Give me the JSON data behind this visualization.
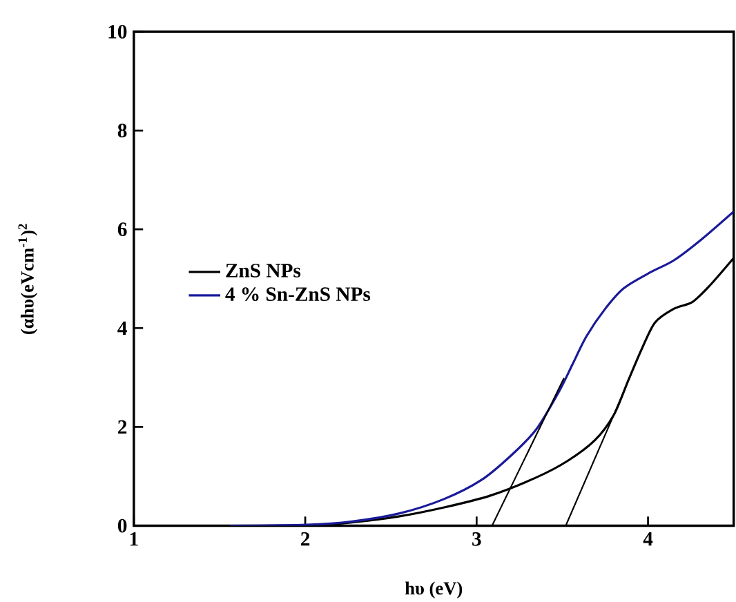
{
  "chart_data": {
    "type": "line",
    "xlabel": "hυ (eV)",
    "ylabel": "(αhυ(eVcm$^{-1}$)$^{2}$",
    "xlim": [
      1,
      4.5
    ],
    "ylim": [
      0,
      10
    ],
    "xticks": [
      1,
      2,
      3,
      4
    ],
    "yticks": [
      0,
      2,
      4,
      6,
      8,
      10
    ],
    "legend": "left",
    "grid": false,
    "marker": "none",
    "line_style": "solid",
    "series": [
      {
        "name": "ZnS NPs",
        "color": "#000000",
        "x": [
          1.56,
          2.01,
          2.28,
          2.55,
          2.81,
          3.08,
          3.35,
          3.53,
          3.69,
          3.8,
          3.88,
          3.96,
          4.04,
          4.15,
          4.26,
          4.36,
          4.5
        ],
        "values": [
          0,
          0,
          0.07,
          0.19,
          0.37,
          0.61,
          0.98,
          1.31,
          1.73,
          2.24,
          2.9,
          3.55,
          4.11,
          4.39,
          4.53,
          4.86,
          5.42
        ]
      },
      {
        "name": "4 % Sn-ZnS NPs",
        "color": "#1a1a9a",
        "x": [
          1.56,
          2.01,
          2.28,
          2.55,
          2.81,
          3.03,
          3.21,
          3.35,
          3.48,
          3.56,
          3.64,
          3.75,
          3.86,
          4.02,
          4.15,
          4.31,
          4.5
        ],
        "values": [
          0,
          0.02,
          0.09,
          0.25,
          0.54,
          0.93,
          1.45,
          1.96,
          2.71,
          3.27,
          3.83,
          4.39,
          4.81,
          5.14,
          5.37,
          5.79,
          6.36
        ]
      },
      {
        "type": "line",
        "color": "#000000",
        "x": [
          3.51,
          3.09
        ],
        "values": [
          2.99,
          0
        ]
      },
      {
        "type": "line",
        "color": "#000000",
        "x": [
          3.87,
          3.52
        ],
        "values": [
          2.8,
          0
        ]
      }
    ]
  }
}
